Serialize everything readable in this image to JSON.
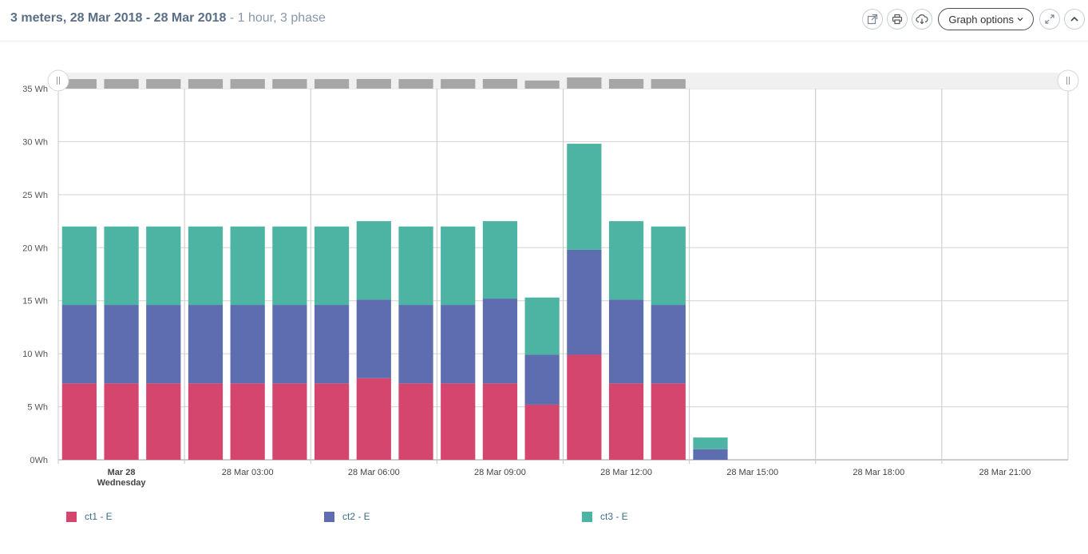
{
  "header": {
    "title_main": "3 meters, 28 Mar 2018 - 28 Mar 2018",
    "title_sub": " - 1 hour, 3 phase",
    "graph_options_label": "Graph options",
    "icons": [
      "external-link-icon",
      "print-icon",
      "cloud-download-icon",
      "expand-icon",
      "chevron-up-icon"
    ]
  },
  "chart_data": {
    "type": "bar",
    "stacked": true,
    "title": "3 meters, 28 Mar 2018 - 28 Mar 2018",
    "xlabel": "",
    "ylabel": "",
    "x_unit": "hour",
    "x_start": "28 Mar 2018 00:00",
    "categories": [
      "00:00",
      "01:00",
      "02:00",
      "03:00",
      "04:00",
      "05:00",
      "06:00",
      "07:00",
      "08:00",
      "09:00",
      "10:00",
      "11:00",
      "12:00",
      "13:00",
      "14:00",
      "15:00",
      "16:00",
      "17:00",
      "18:00",
      "19:00",
      "20:00",
      "21:00",
      "22:00",
      "23:00"
    ],
    "series": [
      {
        "name": "ct1 - E",
        "color": "#d5466f",
        "values": [
          7.2,
          7.2,
          7.2,
          7.2,
          7.2,
          7.2,
          7.2,
          7.7,
          7.2,
          7.2,
          7.2,
          5.2,
          9.9,
          7.2,
          7.2,
          0,
          null,
          null,
          null,
          null,
          null,
          null,
          null,
          null
        ]
      },
      {
        "name": "ct2 - E",
        "color": "#5d6db0",
        "values": [
          7.4,
          7.4,
          7.4,
          7.4,
          7.4,
          7.4,
          7.4,
          7.4,
          7.4,
          7.4,
          8.0,
          4.7,
          9.9,
          7.9,
          7.4,
          1.0,
          null,
          null,
          null,
          null,
          null,
          null,
          null,
          null
        ]
      },
      {
        "name": "ct3 - E",
        "color": "#4db3a3",
        "values": [
          7.4,
          7.4,
          7.4,
          7.4,
          7.4,
          7.4,
          7.4,
          7.4,
          7.4,
          7.4,
          7.3,
          5.4,
          10.0,
          7.4,
          7.4,
          1.1,
          null,
          null,
          null,
          null,
          null,
          null,
          null,
          null
        ]
      }
    ],
    "ylim": [
      0,
      35
    ],
    "y_ticks": [
      {
        "value": 0,
        "label": "0Wh"
      },
      {
        "value": 5,
        "label": "5 Wh"
      },
      {
        "value": 10,
        "label": "10 Wh"
      },
      {
        "value": 15,
        "label": "15 Wh"
      },
      {
        "value": 20,
        "label": "20 Wh"
      },
      {
        "value": 25,
        "label": "25 Wh"
      },
      {
        "value": 30,
        "label": "30 Wh"
      },
      {
        "value": 35,
        "label": "35 Wh"
      }
    ],
    "x_ticks": [
      {
        "hour": 0,
        "label": "Mar 28",
        "label2": "Wednesday"
      },
      {
        "hour": 3,
        "label": "28 Mar 03:00"
      },
      {
        "hour": 6,
        "label": "28 Mar 06:00"
      },
      {
        "hour": 9,
        "label": "28 Mar 09:00"
      },
      {
        "hour": 12,
        "label": "28 Mar 12:00"
      },
      {
        "hour": 15,
        "label": "28 Mar 15:00"
      },
      {
        "hour": 18,
        "label": "28 Mar 18:00"
      },
      {
        "hour": 21,
        "label": "28 Mar 21:00"
      }
    ],
    "grid": true,
    "legend_position": "bottom",
    "navigator": {
      "visible": true,
      "bar_color": "#a6a6a6",
      "background": "#f0f0f0"
    }
  }
}
